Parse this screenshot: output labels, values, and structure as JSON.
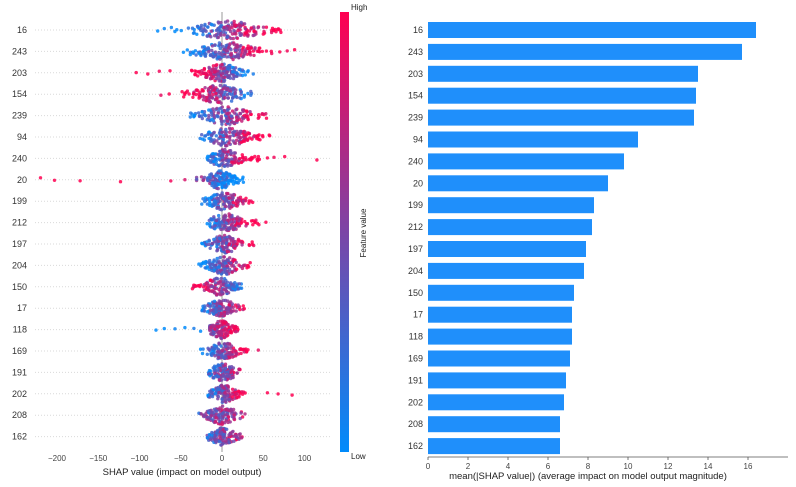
{
  "chart_data": [
    {
      "type": "scatter",
      "variant": "shap-beeswarm-summary",
      "xlabel": "SHAP value (impact on model output)",
      "xticks": [
        -200,
        -150,
        -100,
        -50,
        0,
        50,
        100
      ],
      "xlim": [
        -227,
        131
      ],
      "grid": "dotted-horizontal",
      "colorbar": {
        "title": "Feature value",
        "high_label": "High",
        "low_label": "Low",
        "low_color": "#008bfb",
        "mid_color": "#7b45a6",
        "high_color": "#ff0051"
      },
      "features": [
        {
          "label": "16",
          "center": 8,
          "sigma": 24,
          "lo": -62,
          "hi": 72,
          "corr": 1,
          "n": 170,
          "vbias": 0.05,
          "outliers": [
            {
              "x": -78,
              "v": 0
            },
            {
              "x": -70,
              "v": 0.05
            }
          ]
        },
        {
          "label": "243",
          "center": 5,
          "sigma": 20,
          "lo": -48,
          "hi": 62,
          "corr": 1,
          "n": 160,
          "vbias": 0,
          "outliers": [
            {
              "x": 70,
              "v": 1
            },
            {
              "x": 79,
              "v": 0.95
            },
            {
              "x": 88,
              "v": 1
            }
          ]
        },
        {
          "label": "203",
          "center": 0,
          "sigma": 13,
          "lo": -38,
          "hi": 33,
          "corr": -1,
          "n": 150,
          "vbias": 0.05,
          "outliers": [
            {
              "x": -63,
              "v": 1
            },
            {
              "x": -76,
              "v": 0.95
            },
            {
              "x": -90,
              "v": 1
            },
            {
              "x": -104,
              "v": 1
            },
            {
              "x": 38,
              "v": 0.1
            }
          ]
        },
        {
          "label": "154",
          "center": -4,
          "sigma": 17,
          "lo": -55,
          "hi": 36,
          "corr": -0.9,
          "n": 150,
          "vbias": 0.1,
          "outliers": [
            {
              "x": -64,
              "v": 1
            },
            {
              "x": -74,
              "v": 0.9
            }
          ]
        },
        {
          "label": "239",
          "center": 5,
          "sigma": 17,
          "lo": -40,
          "hi": 58,
          "corr": 0.9,
          "n": 140,
          "vbias": 0,
          "outliers": []
        },
        {
          "label": "94",
          "center": 7,
          "sigma": 15,
          "lo": -28,
          "hi": 60,
          "corr": 0.9,
          "n": 140,
          "vbias": 0,
          "outliers": []
        },
        {
          "label": "240",
          "center": 4,
          "sigma": 11,
          "lo": -18,
          "hi": 46,
          "corr": 1,
          "n": 130,
          "vbias": 0,
          "outliers": [
            {
              "x": 55,
              "v": 1
            },
            {
              "x": 63,
              "v": 0.95
            },
            {
              "x": 76,
              "v": 1
            },
            {
              "x": 115,
              "v": 1
            }
          ]
        },
        {
          "label": "20",
          "center": -2,
          "sigma": 10,
          "lo": -32,
          "hi": 26,
          "corr": -0.6,
          "n": 140,
          "vbias": -0.3,
          "outliers": [
            {
              "x": -220,
              "v": 1
            },
            {
              "x": -203,
              "v": 1
            },
            {
              "x": -172,
              "v": 1
            },
            {
              "x": -123,
              "v": 1
            },
            {
              "x": -62,
              "v": 0.95
            },
            {
              "x": -45,
              "v": 0.85
            }
          ]
        },
        {
          "label": "199",
          "center": 3,
          "sigma": 12,
          "lo": -26,
          "hi": 40,
          "corr": 0.9,
          "n": 130,
          "vbias": 0,
          "outliers": []
        },
        {
          "label": "212",
          "center": 5,
          "sigma": 12,
          "lo": -18,
          "hi": 55,
          "corr": 0.9,
          "n": 130,
          "vbias": 0,
          "outliers": []
        },
        {
          "label": "197",
          "center": 3,
          "sigma": 11,
          "lo": -25,
          "hi": 40,
          "corr": 0.8,
          "n": 130,
          "vbias": 0,
          "outliers": []
        },
        {
          "label": "204",
          "center": 3,
          "sigma": 12,
          "lo": -28,
          "hi": 46,
          "corr": 0.9,
          "n": 130,
          "vbias": 0,
          "outliers": []
        },
        {
          "label": "150",
          "center": -3,
          "sigma": 11,
          "lo": -36,
          "hi": 24,
          "corr": -0.8,
          "n": 130,
          "vbias": 0.05,
          "outliers": []
        },
        {
          "label": "17",
          "center": 0,
          "sigma": 10,
          "lo": -25,
          "hi": 27,
          "corr": 0.7,
          "n": 130,
          "vbias": 0,
          "outliers": []
        },
        {
          "label": "118",
          "center": 0,
          "sigma": 8,
          "lo": -15,
          "hi": 20,
          "corr": 0.5,
          "n": 130,
          "vbias": 0.25,
          "outliers": [
            {
              "x": -80,
              "v": 0
            },
            {
              "x": -70,
              "v": 0
            },
            {
              "x": -57,
              "v": 0.05
            },
            {
              "x": -45,
              "v": 0
            },
            {
              "x": -34,
              "v": 0.1
            },
            {
              "x": -26,
              "v": 0
            }
          ]
        },
        {
          "label": "169",
          "center": 2,
          "sigma": 10,
          "lo": -26,
          "hi": 34,
          "corr": 0.8,
          "n": 130,
          "vbias": 0,
          "outliers": [
            {
              "x": 44,
              "v": 0.9
            }
          ]
        },
        {
          "label": "191",
          "center": 1,
          "sigma": 9,
          "lo": -16,
          "hi": 22,
          "corr": 0.6,
          "n": 120,
          "vbias": 0,
          "outliers": []
        },
        {
          "label": "202",
          "center": 2,
          "sigma": 9,
          "lo": -17,
          "hi": 30,
          "corr": 0.8,
          "n": 120,
          "vbias": 0,
          "outliers": [
            {
              "x": 55,
              "v": 1
            },
            {
              "x": 68,
              "v": 1
            },
            {
              "x": 85,
              "v": 1
            }
          ]
        },
        {
          "label": "208",
          "center": 0,
          "sigma": 11,
          "lo": -28,
          "hi": 30,
          "corr": 0.3,
          "n": 130,
          "vbias": 0.08,
          "outliers": []
        },
        {
          "label": "162",
          "center": 1,
          "sigma": 9,
          "lo": -18,
          "hi": 25,
          "corr": 0.5,
          "n": 120,
          "vbias": 0,
          "outliers": []
        }
      ]
    },
    {
      "type": "bar",
      "orientation": "horizontal",
      "xlabel": "mean(|SHAP value|) (average impact on model output magnitude)",
      "xticks": [
        0,
        2,
        4,
        6,
        8,
        10,
        12,
        14,
        16
      ],
      "xlim": [
        0,
        18
      ],
      "bar_color": "#1f8ffb",
      "categories": [
        "16",
        "243",
        "203",
        "154",
        "239",
        "94",
        "240",
        "20",
        "199",
        "212",
        "197",
        "204",
        "150",
        "17",
        "118",
        "169",
        "191",
        "202",
        "208",
        "162"
      ],
      "values": [
        16.4,
        15.7,
        13.5,
        13.4,
        13.3,
        10.5,
        9.8,
        9.0,
        8.3,
        8.2,
        7.9,
        7.8,
        7.3,
        7.2,
        7.2,
        7.1,
        6.9,
        6.8,
        6.6,
        6.6
      ]
    }
  ]
}
